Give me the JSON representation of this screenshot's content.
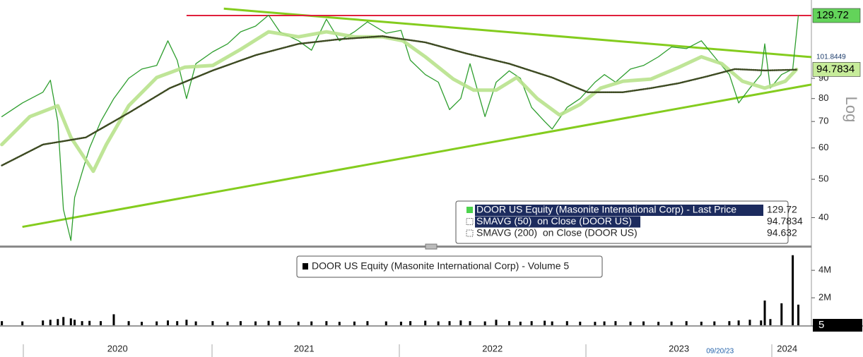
{
  "chart_data": [
    {
      "type": "line",
      "yscale": "log",
      "ylabel": "Log",
      "xlim": [
        2019.87,
        2024.22
      ],
      "ylim": [
        34,
        142
      ],
      "yticks": [
        40,
        50,
        60,
        70,
        80,
        90
      ],
      "series": [
        {
          "name": "DOOR US Equity (Masonite International Corp) - Last Price",
          "color": "#2e9e2e",
          "x": [
            2019.88,
            2019.99,
            2020.1,
            2020.14,
            2020.18,
            2020.21,
            2020.25,
            2020.27,
            2020.31,
            2020.35,
            2020.41,
            2020.48,
            2020.56,
            2020.63,
            2020.71,
            2020.77,
            2020.82,
            2020.87,
            2020.92,
            2021.01,
            2021.09,
            2021.16,
            2021.24,
            2021.31,
            2021.37,
            2021.47,
            2021.54,
            2021.62,
            2021.69,
            2021.77,
            2021.84,
            2021.94,
            2022.02,
            2022.07,
            2022.15,
            2022.22,
            2022.28,
            2022.34,
            2022.39,
            2022.47,
            2022.53,
            2022.6,
            2022.66,
            2022.72,
            2022.79,
            2022.83,
            2022.91,
            2022.98,
            2023.06,
            2023.11,
            2023.17,
            2023.25,
            2023.32,
            2023.4,
            2023.47,
            2023.55,
            2023.63,
            2023.7,
            2023.78,
            2023.83,
            2023.89,
            2023.95,
            2023.97,
            2024.0,
            2024.06,
            2024.12,
            2024.15
          ],
          "values": [
            72,
            78,
            83,
            89,
            70,
            42,
            35,
            45,
            52,
            60,
            70,
            80,
            90,
            95,
            97,
            112,
            100,
            80,
            98,
            105,
            110,
            118,
            122,
            130,
            118,
            112,
            106,
            127,
            112,
            118,
            125,
            117,
            119,
            100,
            92,
            88,
            75,
            80,
            98,
            72,
            88,
            94,
            90,
            76,
            70,
            67,
            76,
            80,
            88,
            92,
            88,
            95,
            97,
            102,
            108,
            107,
            112,
            102,
            92,
            78,
            85,
            92,
            110,
            85,
            92,
            95,
            129.72
          ]
        },
        {
          "name": "SMAVG (50)  on Close (DOOR US)",
          "color": "#b8e28c",
          "x": [
            2019.88,
            2020.03,
            2020.18,
            2020.25,
            2020.37,
            2020.44,
            2020.56,
            2020.71,
            2020.86,
            2021.01,
            2021.16,
            2021.31,
            2021.47,
            2021.62,
            2021.77,
            2021.92,
            2022.03,
            2022.15,
            2022.3,
            2022.41,
            2022.53,
            2022.64,
            2022.75,
            2022.87,
            2022.98,
            2023.09,
            2023.21,
            2023.36,
            2023.51,
            2023.63,
            2023.74,
            2023.85,
            2023.97,
            2024.08,
            2024.14
          ],
          "values": [
            61.2,
            72,
            76.7,
            63.8,
            52.4,
            61.2,
            76.7,
            90.4,
            96,
            97,
            106.5,
            118,
            114.6,
            118,
            114.6,
            114.6,
            112,
            102,
            89.6,
            84,
            84,
            90.4,
            80,
            72.7,
            77.3,
            85,
            88.5,
            89.6,
            96,
            102,
            98,
            88.5,
            85,
            88.5,
            94.7834
          ]
        },
        {
          "name": "SMAVG (200)  on Close (DOOR US)",
          "color": "#3d4a22",
          "x": [
            2019.88,
            2020.1,
            2020.33,
            2020.56,
            2020.78,
            2021.01,
            2021.24,
            2021.47,
            2021.69,
            2021.92,
            2022.15,
            2022.37,
            2022.6,
            2022.83,
            2023.02,
            2023.21,
            2023.36,
            2023.51,
            2023.66,
            2023.81,
            2023.97,
            2024.14
          ],
          "values": [
            54.2,
            61.2,
            63.8,
            73.6,
            85,
            94.2,
            103,
            110,
            113,
            115,
            111,
            104,
            98,
            90.4,
            83,
            83,
            85,
            87.5,
            91,
            95,
            94.2,
            94.632
          ]
        }
      ],
      "trendlines": [
        {
          "color": "#84cc1e",
          "x": [
            2021.07,
            2024.22
          ],
          "values": [
            135,
            101.8449
          ]
        },
        {
          "color": "#84cc1e",
          "x": [
            2019.99,
            2024.22
          ],
          "values": [
            37.9,
            86.8
          ]
        }
      ],
      "hline": {
        "color": "#e0203c",
        "x": [
          2020.87,
          2024.22
        ],
        "value": 129.72
      }
    },
    {
      "type": "bar",
      "xlim": [
        2019.87,
        2024.22
      ],
      "ylim": [
        0,
        5600000
      ],
      "yticks": [
        {
          "value": 2000000,
          "label": "2M"
        },
        {
          "value": 4000000,
          "label": "4M"
        }
      ],
      "xticks": [
        {
          "value": 2020.5,
          "label": "2020"
        },
        {
          "value": 2021.5,
          "label": "2021"
        },
        {
          "value": 2022.51,
          "label": "2022"
        },
        {
          "value": 2023.51,
          "label": "2023"
        },
        {
          "value": 2024.09,
          "label": "2024"
        }
      ],
      "annotations": [
        {
          "text": "09/20/23",
          "x": 2023.73
        }
      ],
      "last_value": 5,
      "series": [
        {
          "name": "DOOR US Equity (Masonite International Corp) - Volume 5",
          "color": "#000000",
          "x": [
            2019.88,
            2019.99,
            2020.1,
            2020.14,
            2020.18,
            2020.21,
            2020.25,
            2020.27,
            2020.31,
            2020.35,
            2020.41,
            2020.48,
            2020.56,
            2020.63,
            2020.71,
            2020.77,
            2020.82,
            2020.87,
            2020.92,
            2021.01,
            2021.09,
            2021.16,
            2021.24,
            2021.31,
            2021.37,
            2021.47,
            2021.54,
            2021.62,
            2021.69,
            2021.77,
            2021.84,
            2021.94,
            2022.02,
            2022.07,
            2022.15,
            2022.22,
            2022.28,
            2022.34,
            2022.39,
            2022.47,
            2022.53,
            2022.6,
            2022.66,
            2022.72,
            2022.79,
            2022.83,
            2022.91,
            2022.98,
            2023.06,
            2023.11,
            2023.17,
            2023.25,
            2023.32,
            2023.4,
            2023.47,
            2023.55,
            2023.63,
            2023.7,
            2023.78,
            2023.83,
            2023.89,
            2023.95,
            2023.97,
            2024.0,
            2024.06,
            2024.12,
            2024.15
          ],
          "values": [
            300000,
            280000,
            350000,
            400000,
            450000,
            600000,
            500000,
            400000,
            300000,
            320000,
            300000,
            800000,
            300000,
            250000,
            280000,
            350000,
            300000,
            400000,
            280000,
            300000,
            260000,
            300000,
            280000,
            320000,
            300000,
            260000,
            280000,
            300000,
            250000,
            270000,
            300000,
            280000,
            260000,
            300000,
            330000,
            280000,
            300000,
            350000,
            300000,
            280000,
            400000,
            300000,
            260000,
            300000,
            330000,
            280000,
            300000,
            260000,
            250000,
            280000,
            300000,
            260000,
            280000,
            250000,
            270000,
            300000,
            260000,
            280000,
            300000,
            350000,
            400000,
            350000,
            1800000,
            450000,
            1600000,
            5100000,
            1500000
          ]
        }
      ]
    }
  ]
}
